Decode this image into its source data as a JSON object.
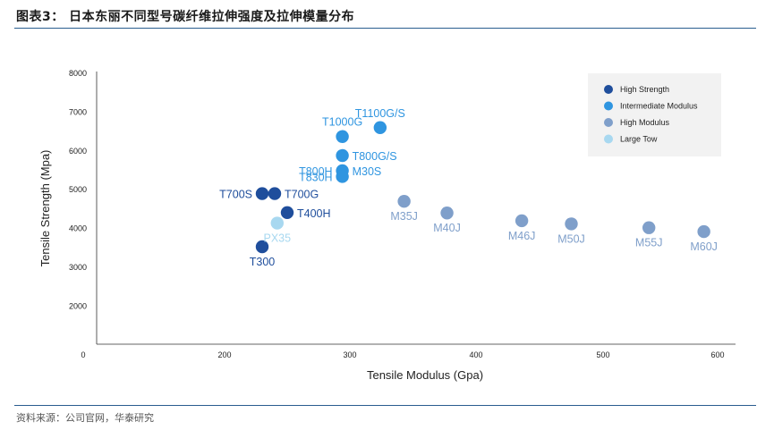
{
  "header": {
    "title": "图表3：  日本东丽不同型号碳纤维拉伸强度及拉伸模量分布"
  },
  "footer": {
    "source": "资料来源：公司官网，华泰研究"
  },
  "chart_data": {
    "type": "scatter",
    "xlabel": "Tensile Modulus (Gpa)",
    "ylabel": "Tensile Strength (Mpa)",
    "xlim": [
      0,
      600
    ],
    "ylim": [
      1200,
      8000
    ],
    "x_ticks": [
      0,
      200,
      300,
      400,
      500,
      600
    ],
    "y_ticks": [
      2000,
      3000,
      4000,
      5000,
      6000,
      7000,
      8000
    ],
    "legend_position": "top-right",
    "series": [
      {
        "name": "High Strength",
        "color": "#1f4e9c",
        "points": [
          {
            "label": "T300",
            "x": 230,
            "y": 3530,
            "pos": "below"
          },
          {
            "label": "T400H",
            "x": 250,
            "y": 4410,
            "pos": "right"
          },
          {
            "label": "T700S",
            "x": 230,
            "y": 4900,
            "pos": "left"
          },
          {
            "label": "T700G",
            "x": 240,
            "y": 4900,
            "pos": "right"
          }
        ]
      },
      {
        "name": "Intermediate Modulus",
        "color": "#2f95e0",
        "points": [
          {
            "label": "T800H",
            "x": 294,
            "y": 5490,
            "pos": "left"
          },
          {
            "label": "M30S",
            "x": 294,
            "y": 5490,
            "pos": "right"
          },
          {
            "label": "T830H",
            "x": 294,
            "y": 5340,
            "pos": "left"
          },
          {
            "label": "T800G/S",
            "x": 294,
            "y": 5880,
            "pos": "right"
          },
          {
            "label": "T1000G",
            "x": 294,
            "y": 6370,
            "pos": "above"
          },
          {
            "label": "T1100G/S",
            "x": 324,
            "y": 6600,
            "pos": "above"
          }
        ]
      },
      {
        "name": "High Modulus",
        "color": "#7f9fca",
        "points": [
          {
            "label": "M35J",
            "x": 343,
            "y": 4700,
            "pos": "below"
          },
          {
            "label": "M40J",
            "x": 377,
            "y": 4400,
            "pos": "below"
          },
          {
            "label": "M46J",
            "x": 436,
            "y": 4200,
            "pos": "below"
          },
          {
            "label": "M50J",
            "x": 475,
            "y": 4120,
            "pos": "below"
          },
          {
            "label": "M55J",
            "x": 540,
            "y": 4020,
            "pos": "below"
          },
          {
            "label": "M60J",
            "x": 588,
            "y": 3920,
            "pos": "below"
          }
        ]
      },
      {
        "name": "Large Tow",
        "color": "#a8d8f0",
        "points": [
          {
            "label": "PX35",
            "x": 242,
            "y": 4140,
            "pos": "below"
          }
        ]
      }
    ]
  }
}
